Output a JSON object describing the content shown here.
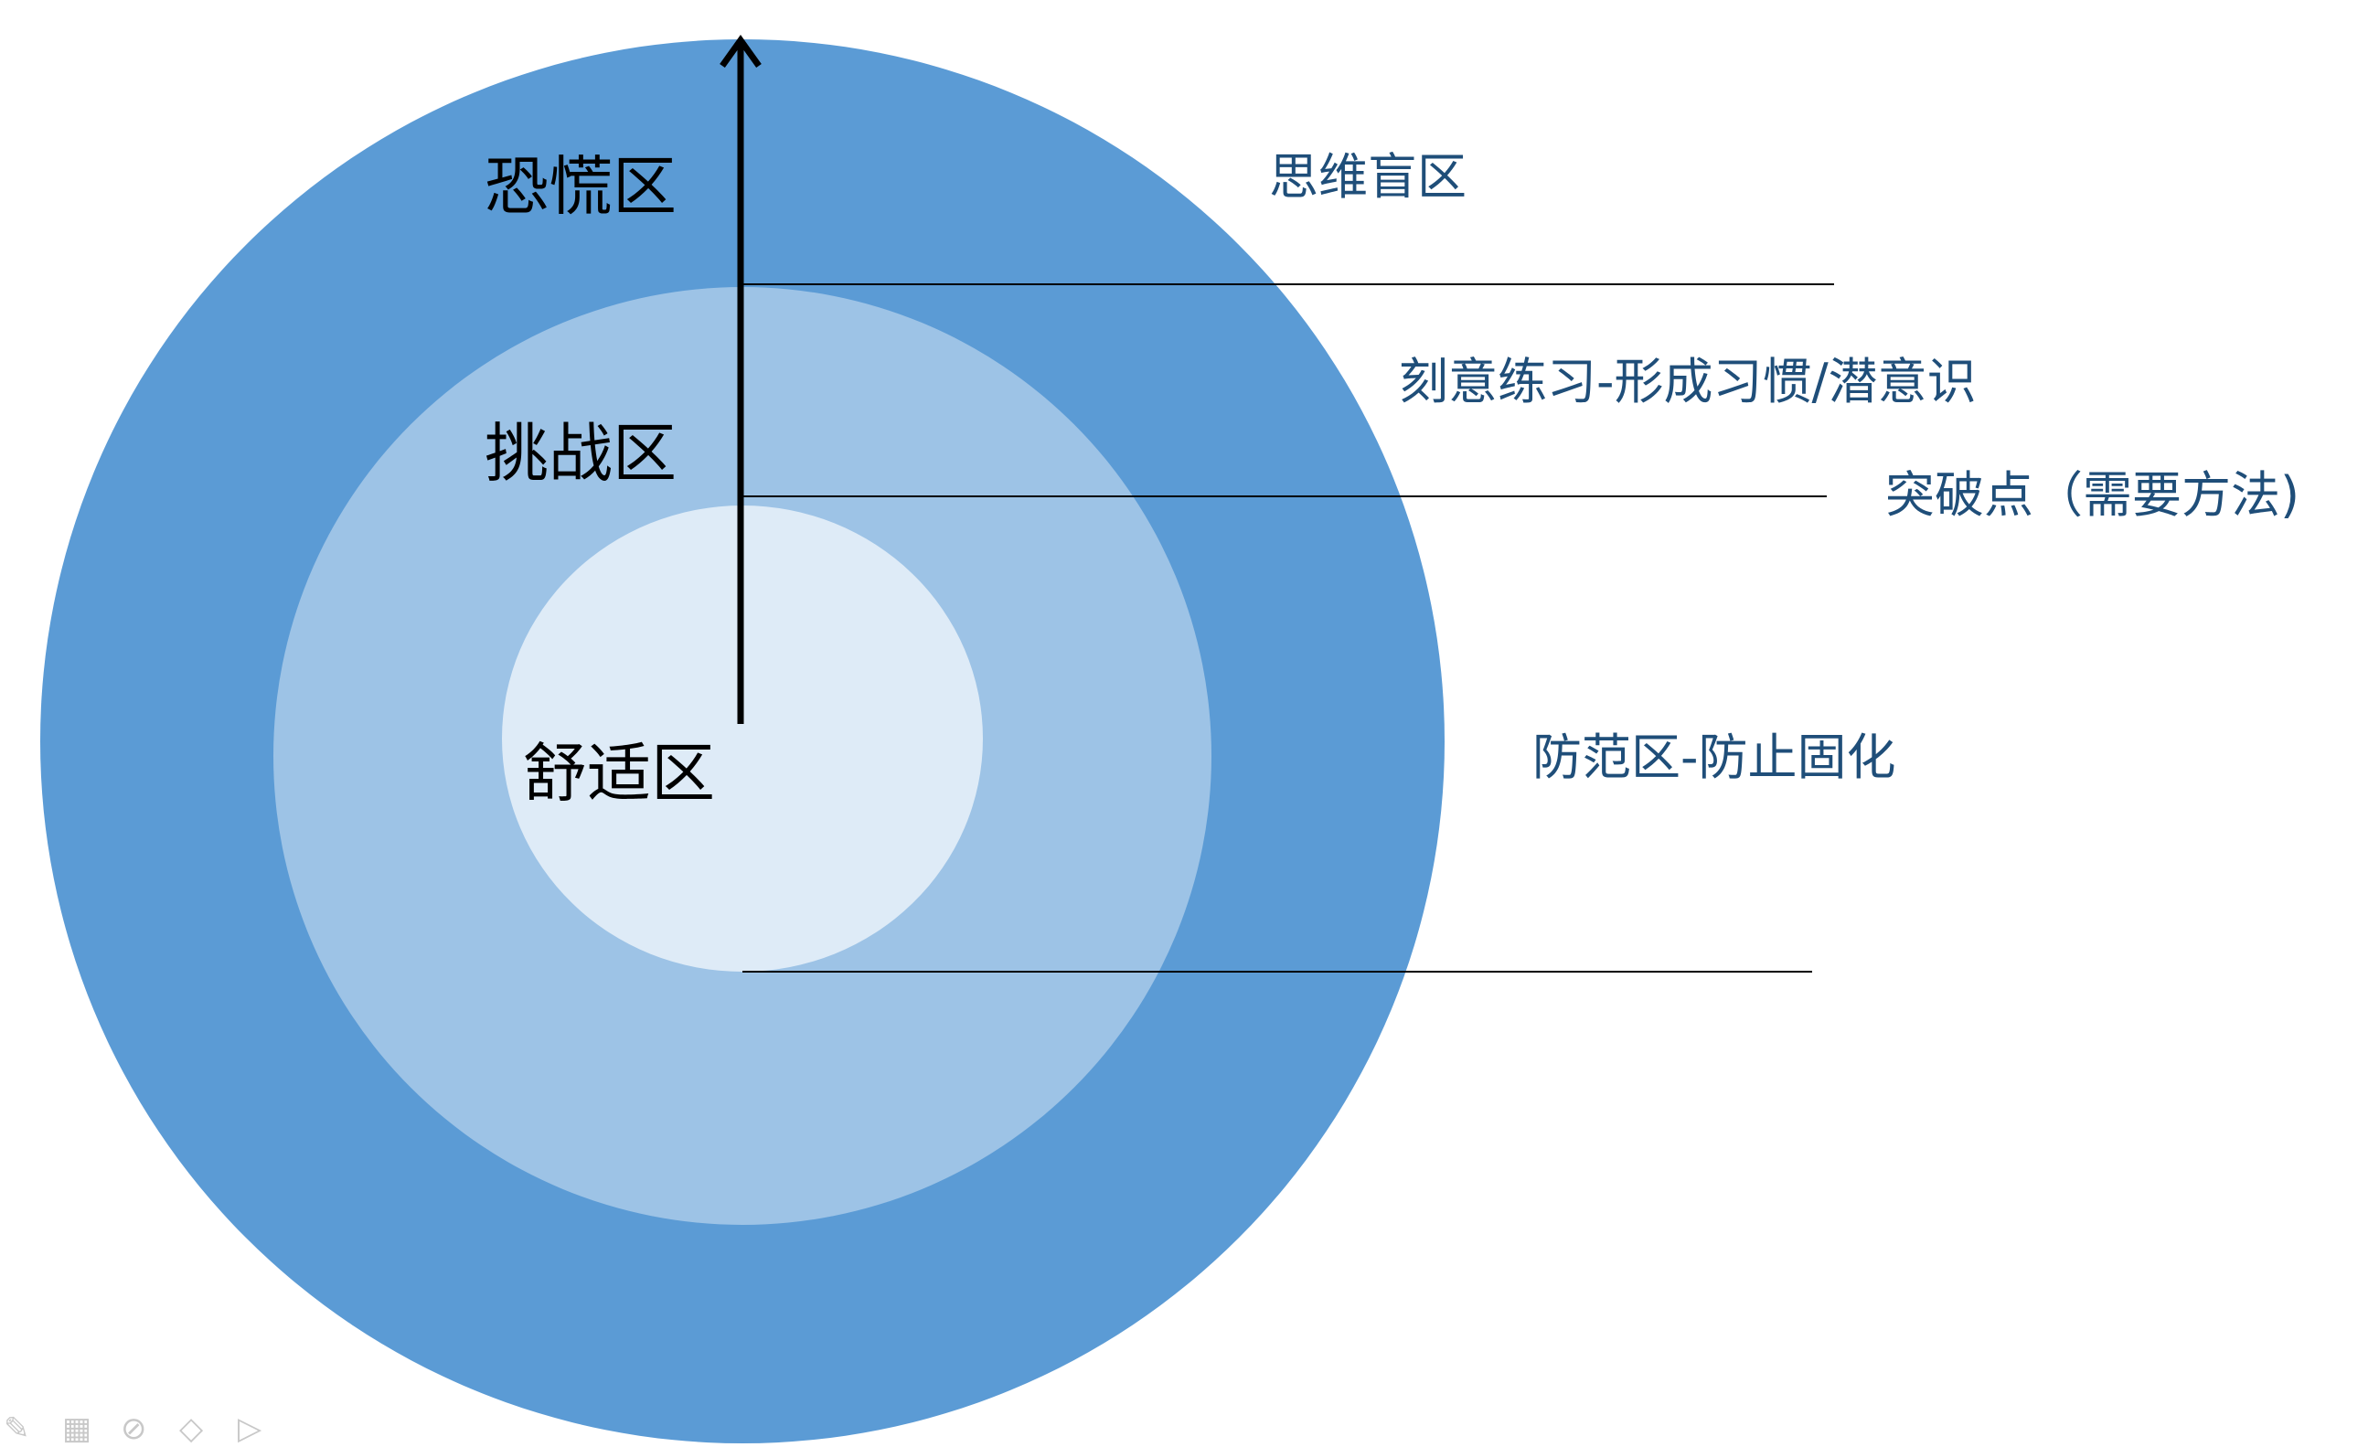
{
  "diagram": {
    "zones": {
      "panic": {
        "label": "恐慌区",
        "color": "#5b9bd5"
      },
      "challenge": {
        "label": "挑战区",
        "color": "#9dc3e6"
      },
      "comfort": {
        "label": "舒适区",
        "color": "#deebf7"
      }
    },
    "annotations": {
      "blind_spot": "思维盲区",
      "deliberate_practice": "刻意练习-形成习惯/潜意识",
      "breakthrough": "突破点（需要方法)",
      "guard_zone": "防范区-防止固化"
    },
    "annotation_color": "#1f4e79",
    "line_color": "#000000"
  },
  "toolbar": {
    "icons": [
      "pen-icon",
      "grid-icon",
      "pin-icon",
      "eraser-icon",
      "pointer-icon"
    ]
  }
}
